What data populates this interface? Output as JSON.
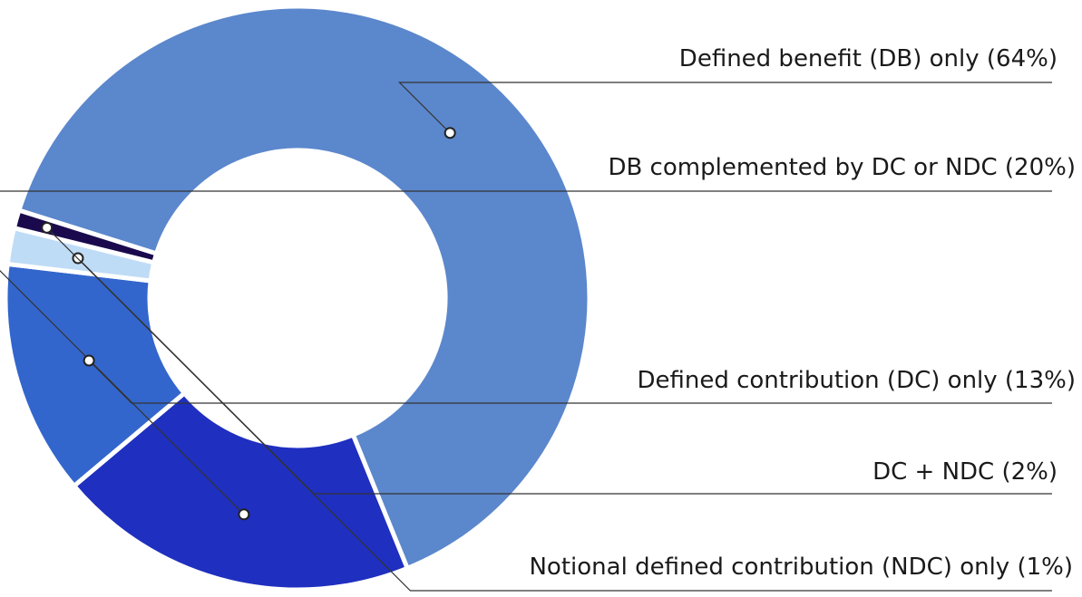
{
  "chart_data": {
    "type": "pie",
    "donut": true,
    "title": "",
    "slices": [
      {
        "label": "Defined benefit (DB) only (64%)",
        "value": 64,
        "color": "#5b87cc"
      },
      {
        "label": "DB complemented by DC or NDC (20%)",
        "value": 20,
        "color": "#1f2fbf"
      },
      {
        "label": "Defined contribution (DC) only (13%)",
        "value": 13,
        "color": "#3366cc"
      },
      {
        "label": "DC + NDC (2%)",
        "value": 2,
        "color": "#bfdcf7"
      },
      {
        "label": "Notional defined contribution (NDC) only (1%)",
        "value": 1,
        "color": "#1a0a4d"
      }
    ]
  }
}
